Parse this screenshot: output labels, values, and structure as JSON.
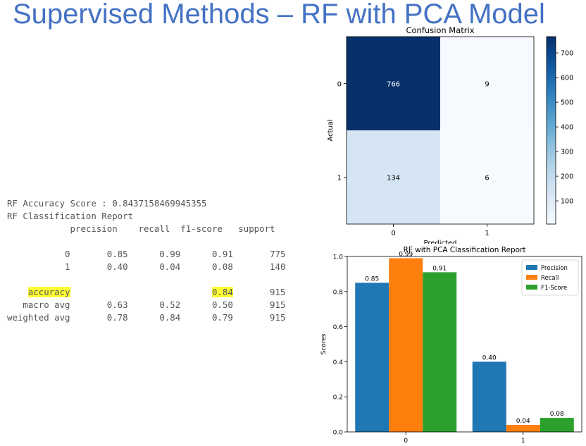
{
  "slide_title": "Supervised Methods – RF with PCA Model",
  "report": {
    "accuracy_line": "RF Accuracy Score : 0.8437158469945355",
    "report_title": "RF Classification Report",
    "columns": [
      "precision",
      "recall",
      "f1-score",
      "support"
    ],
    "rows": [
      {
        "label": "0",
        "precision": "0.85",
        "recall": "0.99",
        "f1": "0.91",
        "support": "775"
      },
      {
        "label": "1",
        "precision": "0.40",
        "recall": "0.04",
        "f1": "0.08",
        "support": "140"
      }
    ],
    "accuracy_row": {
      "label": "accuracy",
      "f1": "0.84",
      "support": "915"
    },
    "avg_rows": [
      {
        "label": "macro avg",
        "precision": "0.63",
        "recall": "0.52",
        "f1": "0.50",
        "support": "915"
      },
      {
        "label": "weighted avg",
        "precision": "0.78",
        "recall": "0.84",
        "f1": "0.79",
        "support": "915"
      }
    ],
    "highlight_color": "#ffff33"
  },
  "chart_data": [
    {
      "type": "heatmap",
      "title": "Confusion Matrix",
      "xlabel": "Predicted",
      "ylabel": "Actual",
      "x_categories": [
        "0",
        "1"
      ],
      "y_categories": [
        "0",
        "1"
      ],
      "matrix": [
        [
          766,
          9
        ],
        [
          134,
          6
        ]
      ],
      "colormap": "Blues",
      "colorbar_ticks": [
        100,
        200,
        300,
        400,
        500,
        600,
        700
      ],
      "colorbar_range": [
        6,
        766
      ]
    },
    {
      "type": "bar",
      "title": "RF with PCA Classification Report",
      "categories": [
        "0",
        "1"
      ],
      "series": [
        {
          "name": "Precision",
          "values": [
            0.85,
            0.4
          ],
          "color": "#1f77b4"
        },
        {
          "name": "Recall",
          "values": [
            0.99,
            0.04
          ],
          "color": "#ff7f0e"
        },
        {
          "name": "F1-Score",
          "values": [
            0.91,
            0.08
          ],
          "color": "#2ca02c"
        }
      ],
      "xlabel": "",
      "ylabel": "Scores",
      "ylim": [
        0,
        1.0
      ],
      "yticks": [
        "0.0",
        "0.2",
        "0.4",
        "0.6",
        "0.8",
        "1.0"
      ],
      "legend": "top-right"
    }
  ]
}
